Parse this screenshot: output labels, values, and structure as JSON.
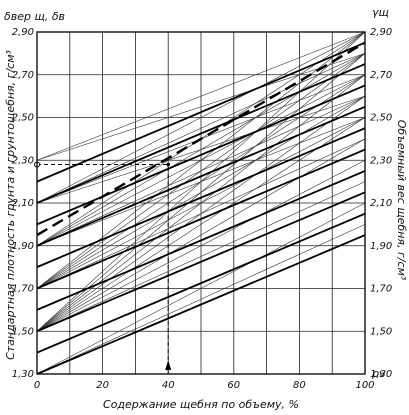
{
  "chart_data": {
    "type": "line",
    "title": "",
    "top_left_label": "δвер щ, δв",
    "top_right_label": "γщ",
    "ylabel_left": "Стандартная плотность грунта и грунтощебня, г/см³",
    "ylabel_right": "Объемный вес щебня, г/см³",
    "xlabel": "Содержание щебня по объему, %",
    "x_end_label": "ρv",
    "xlim": [
      0,
      100
    ],
    "ylim": [
      1.3,
      2.9
    ],
    "xticks": [
      0,
      20,
      40,
      60,
      80,
      100
    ],
    "xtick_labels": [
      "0",
      "20",
      "40",
      "60",
      "80",
      "100"
    ],
    "yticks": [
      1.3,
      1.5,
      1.7,
      1.9,
      2.1,
      2.3,
      2.5,
      2.7,
      2.9
    ],
    "ytick_labels_left": [
      "1,30",
      "1,50",
      "1,70",
      "1,90",
      "2,10",
      "2,30",
      "2,50",
      "2,70",
      "2,90"
    ],
    "ytick_labels_right": [
      "1,30",
      "1,50",
      "1,70",
      "1,90",
      "2,10",
      "2,30",
      "2,50",
      "2,70",
      "2,90"
    ],
    "grid": true,
    "series": [
      {
        "x": [
          0,
          100
        ],
        "y": [
          1.3,
          1.95
        ]
      },
      {
        "x": [
          0,
          100
        ],
        "y": [
          1.4,
          2.05
        ]
      },
      {
        "x": [
          0,
          100
        ],
        "y": [
          1.5,
          2.15
        ]
      },
      {
        "x": [
          0,
          100
        ],
        "y": [
          1.6,
          2.25
        ]
      },
      {
        "x": [
          0,
          100
        ],
        "y": [
          1.7,
          2.35
        ]
      },
      {
        "x": [
          0,
          100
        ],
        "y": [
          1.8,
          2.45
        ]
      },
      {
        "x": [
          0,
          100
        ],
        "y": [
          1.9,
          2.55
        ]
      },
      {
        "x": [
          0,
          100
        ],
        "y": [
          2.0,
          2.65
        ]
      },
      {
        "x": [
          0,
          100
        ],
        "y": [
          2.1,
          2.75
        ]
      },
      {
        "x": [
          0,
          100
        ],
        "y": [
          2.2,
          2.85
        ]
      }
    ],
    "fan_lines": [
      {
        "x": [
          0,
          100
        ],
        "y": [
          1.5,
          2.9
        ]
      },
      {
        "x": [
          0,
          100
        ],
        "y": [
          1.5,
          2.8
        ]
      },
      {
        "x": [
          0,
          100
        ],
        "y": [
          1.5,
          2.7
        ]
      },
      {
        "x": [
          0,
          100
        ],
        "y": [
          1.5,
          2.6
        ]
      },
      {
        "x": [
          0,
          100
        ],
        "y": [
          1.5,
          2.5
        ]
      },
      {
        "x": [
          0,
          100
        ],
        "y": [
          1.5,
          2.4
        ]
      },
      {
        "x": [
          0,
          100
        ],
        "y": [
          1.5,
          2.3
        ]
      },
      {
        "x": [
          0,
          100
        ],
        "y": [
          1.5,
          2.2
        ]
      },
      {
        "x": [
          0,
          100
        ],
        "y": [
          1.7,
          2.9
        ]
      },
      {
        "x": [
          0,
          100
        ],
        "y": [
          1.7,
          2.8
        ]
      },
      {
        "x": [
          0,
          100
        ],
        "y": [
          1.7,
          2.7
        ]
      },
      {
        "x": [
          0,
          100
        ],
        "y": [
          1.7,
          2.6
        ]
      },
      {
        "x": [
          0,
          100
        ],
        "y": [
          1.7,
          2.5
        ]
      },
      {
        "x": [
          0,
          100
        ],
        "y": [
          1.7,
          2.4
        ]
      },
      {
        "x": [
          0,
          100
        ],
        "y": [
          1.9,
          2.9
        ]
      },
      {
        "x": [
          0,
          100
        ],
        "y": [
          1.9,
          2.8
        ]
      },
      {
        "x": [
          0,
          100
        ],
        "y": [
          1.9,
          2.7
        ]
      },
      {
        "x": [
          0,
          100
        ],
        "y": [
          1.9,
          2.6
        ]
      },
      {
        "x": [
          0,
          100
        ],
        "y": [
          1.9,
          2.5
        ]
      },
      {
        "x": [
          0,
          100
        ],
        "y": [
          2.1,
          2.9
        ]
      },
      {
        "x": [
          0,
          100
        ],
        "y": [
          2.1,
          2.8
        ]
      },
      {
        "x": [
          0,
          100
        ],
        "y": [
          2.1,
          2.7
        ]
      },
      {
        "x": [
          0,
          100
        ],
        "y": [
          2.1,
          2.6
        ]
      },
      {
        "x": [
          0,
          100
        ],
        "y": [
          2.3,
          2.9
        ]
      },
      {
        "x": [
          0,
          100
        ],
        "y": [
          2.3,
          2.8
        ]
      },
      {
        "x": [
          0,
          100
        ],
        "y": [
          1.3,
          2.1
        ]
      },
      {
        "x": [
          0,
          100
        ],
        "y": [
          1.3,
          2.0
        ]
      }
    ],
    "example_dashed_line": {
      "x": [
        0,
        100
      ],
      "y": [
        1.95,
        2.85
      ]
    },
    "example_point": {
      "x": 40,
      "y": 2.28
    }
  }
}
